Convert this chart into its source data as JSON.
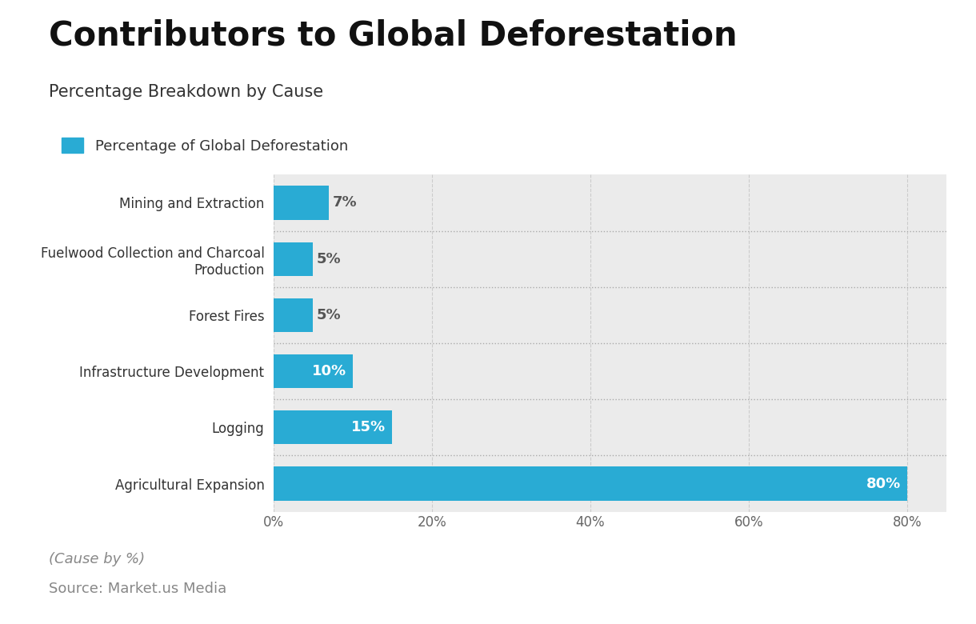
{
  "title": "Contributors to Global Deforestation",
  "subtitle": "Percentage Breakdown by Cause",
  "legend_label": "Percentage of Global Deforestation",
  "xlabel_note": "(Cause by %)",
  "source": "Source: Market.us Media",
  "categories": [
    "Agricultural Expansion",
    "Logging",
    "Infrastructure Development",
    "Forest Fires",
    "Fuelwood Collection and Charcoal\nProduction",
    "Mining and Extraction"
  ],
  "values": [
    80,
    15,
    10,
    5,
    5,
    7
  ],
  "bar_color": "#29ABD4",
  "bar_label_color_inside": "#ffffff",
  "bar_label_color_outside": "#555555",
  "background_color": "#ffffff",
  "plot_bg_color": "#ebebeb",
  "title_fontsize": 30,
  "subtitle_fontsize": 15,
  "legend_fontsize": 13,
  "tick_fontsize": 12,
  "label_fontsize": 13,
  "note_fontsize": 13,
  "source_fontsize": 13,
  "xlim": [
    0,
    85
  ],
  "xticks": [
    0,
    20,
    40,
    60,
    80
  ]
}
